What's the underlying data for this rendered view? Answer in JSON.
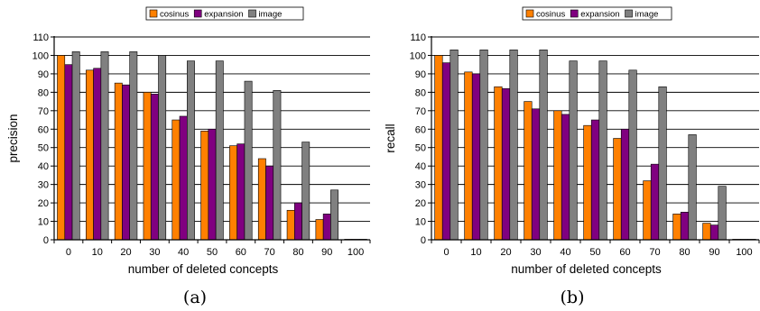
{
  "colors": {
    "cosinus": "#ff8000",
    "expansion": "#800080",
    "image": "#808080"
  },
  "charts": [
    {
      "caption": "(a)",
      "chart_data": {
        "type": "bar",
        "title": "",
        "xlabel": "number of deleted concepts",
        "ylabel": "precision",
        "categories": [
          "0",
          "10",
          "20",
          "30",
          "40",
          "50",
          "60",
          "70",
          "80",
          "90",
          "100"
        ],
        "ylim": [
          0,
          110
        ],
        "yticks": [
          "0",
          "10",
          "20",
          "30",
          "40",
          "50",
          "60",
          "70",
          "80",
          "90",
          "100",
          "110"
        ],
        "grid": "horizontal",
        "legend": "top",
        "series": [
          {
            "name": "cosinus",
            "values": [
              100,
              92,
              85,
              80,
              65,
              59,
              51,
              44,
              16,
              11,
              0
            ]
          },
          {
            "name": "expansion",
            "values": [
              95,
              93,
              84,
              79,
              67,
              60,
              52,
              40,
              20,
              14,
              0
            ]
          },
          {
            "name": "image",
            "values": [
              102,
              102,
              102,
              100,
              97,
              97,
              86,
              81,
              53,
              27,
              0
            ]
          }
        ]
      }
    },
    {
      "caption": "(b)",
      "chart_data": {
        "type": "bar",
        "title": "",
        "xlabel": "number of deleted concepts",
        "ylabel": "recall",
        "categories": [
          "0",
          "10",
          "20",
          "30",
          "40",
          "50",
          "60",
          "70",
          "80",
          "90",
          "100"
        ],
        "ylim": [
          0,
          110
        ],
        "yticks": [
          "0",
          "10",
          "20",
          "30",
          "40",
          "50",
          "60",
          "70",
          "80",
          "90",
          "100",
          "110"
        ],
        "grid": "horizontal",
        "legend": "top",
        "series": [
          {
            "name": "cosinus",
            "values": [
              100,
              91,
              83,
              75,
              70,
              62,
              55,
              32,
              14,
              9,
              0
            ]
          },
          {
            "name": "expansion",
            "values": [
              96,
              90,
              82,
              71,
              68,
              65,
              60,
              41,
              15,
              8,
              0
            ]
          },
          {
            "name": "image",
            "values": [
              103,
              103,
              103,
              103,
              97,
              97,
              92,
              83,
              57,
              29,
              0
            ]
          }
        ]
      }
    }
  ]
}
